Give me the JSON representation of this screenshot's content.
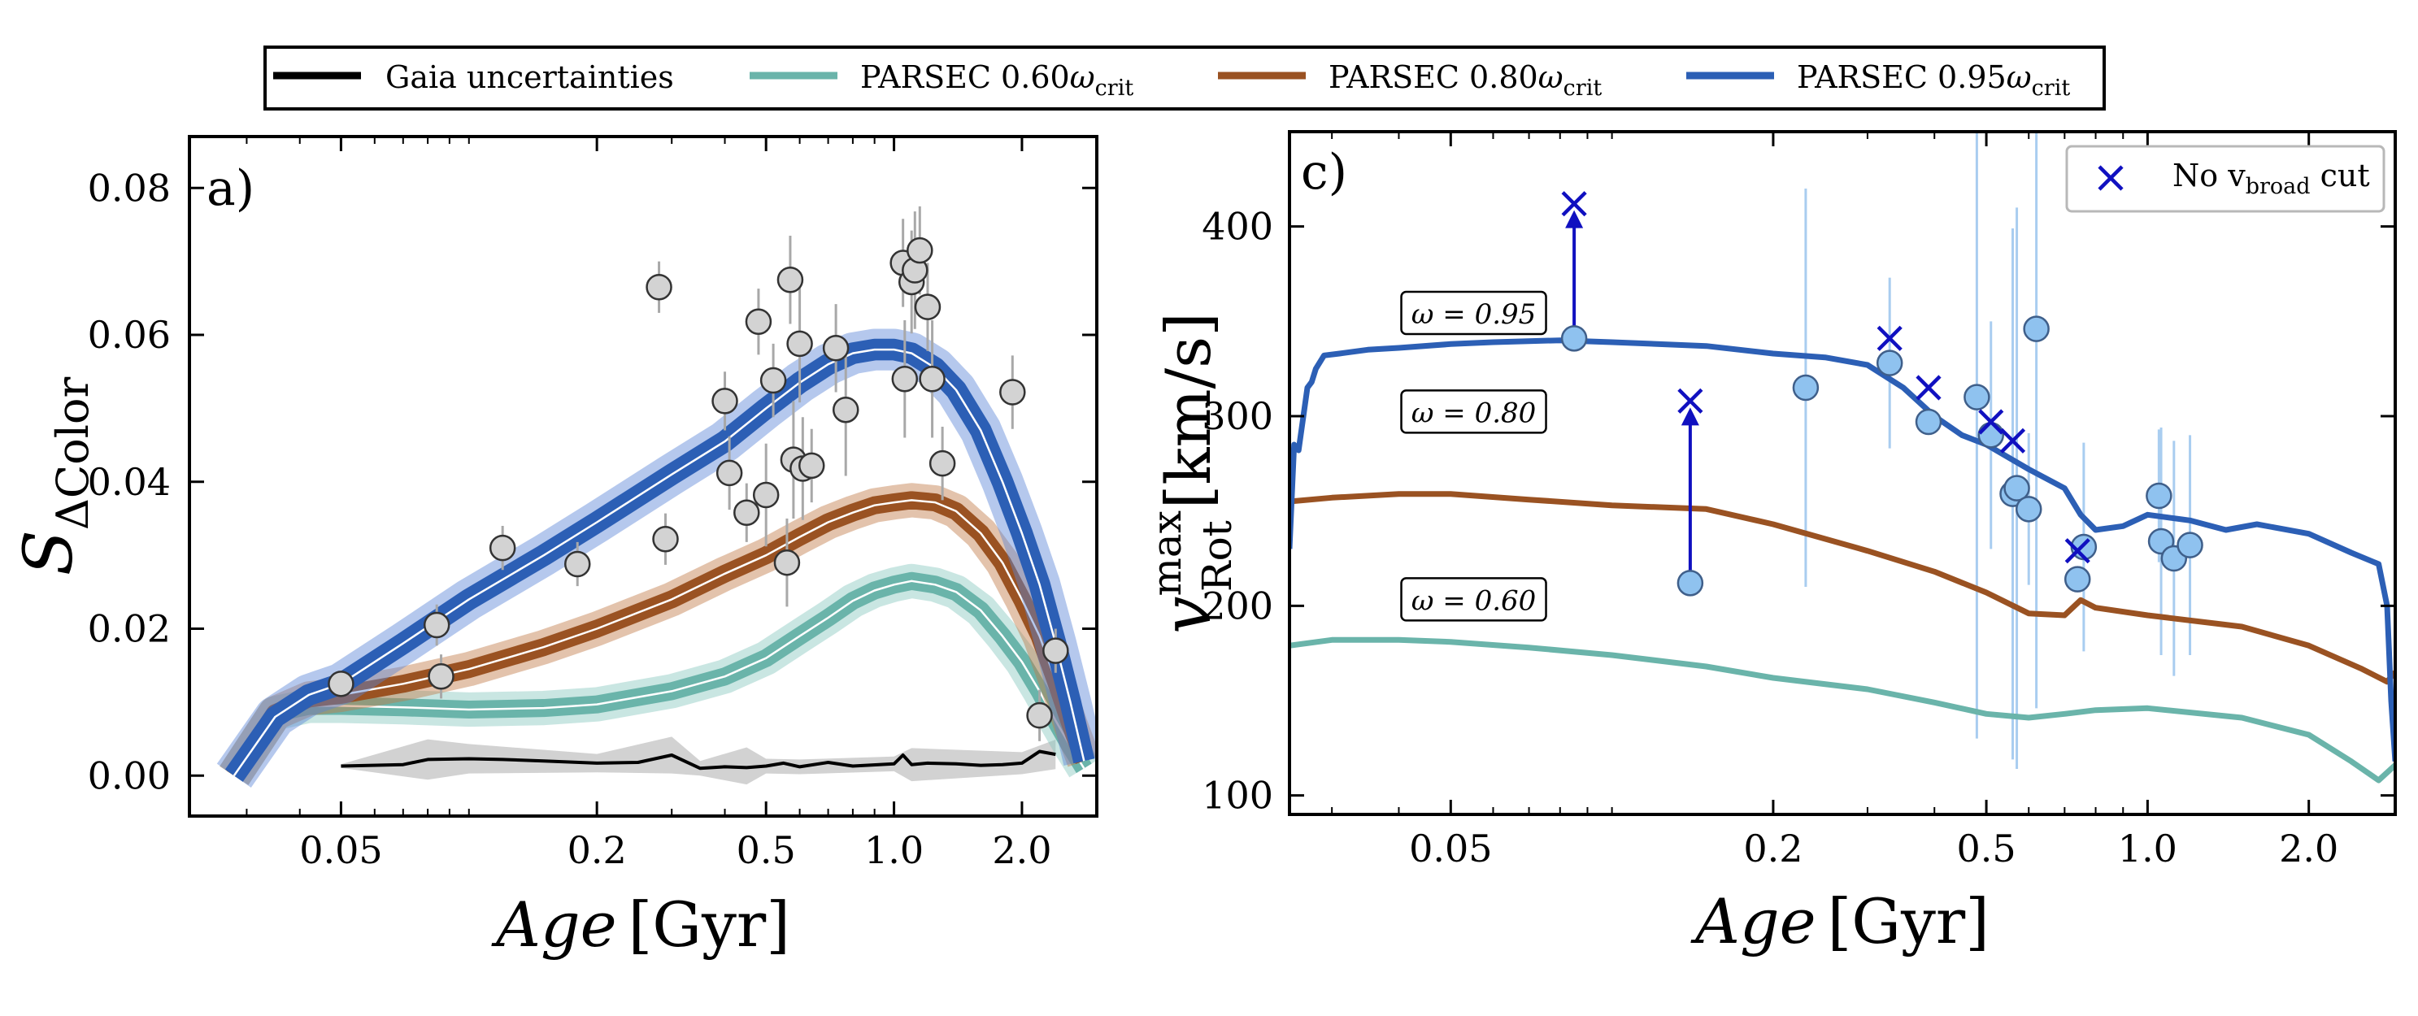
{
  "legend": {
    "entries": [
      {
        "label": "Gaia uncertainties",
        "color": "#000000"
      },
      {
        "label": "PARSEC 0.60",
        "sub": "crit",
        "color": "#6ab4aa"
      },
      {
        "label": "PARSEC 0.80",
        "sub": "crit",
        "color": "#9a5222"
      },
      {
        "label": "PARSEC 0.95",
        "sub": "crit",
        "color": "#2c5fb5"
      }
    ],
    "omega_symbol": "ω"
  },
  "chart_data": [
    {
      "id": "a",
      "type": "line",
      "panel_label": "a)",
      "xscale": "log",
      "xlim": [
        0.022,
        3.0
      ],
      "ylim": [
        -0.0055,
        0.087
      ],
      "xticks": [
        {
          "value": 0.05,
          "label": "0.05"
        },
        {
          "value": 0.2,
          "label": "0.2"
        },
        {
          "value": 0.5,
          "label": "0.5"
        },
        {
          "value": 1.0,
          "label": "1.0"
        },
        {
          "value": 2.0,
          "label": "2.0"
        }
      ],
      "yticks": [
        {
          "value": 0.0,
          "label": "0.00"
        },
        {
          "value": 0.02,
          "label": "0.02"
        },
        {
          "value": 0.04,
          "label": "0.04"
        },
        {
          "value": 0.06,
          "label": "0.06"
        },
        {
          "value": 0.08,
          "label": "0.08"
        }
      ],
      "xlabel": {
        "main": "Age",
        "unit": "[Gyr]"
      },
      "ylabel": {
        "main": "S",
        "sub": "ΔColor"
      },
      "series": [
        {
          "name": "PARSEC 0.95",
          "color": "#2c5fb5",
          "band_color": "#5b86d6",
          "band_width": 0.0025,
          "x": [
            0.028,
            0.035,
            0.042,
            0.05,
            0.07,
            0.1,
            0.15,
            0.2,
            0.3,
            0.4,
            0.5,
            0.6,
            0.7,
            0.8,
            0.9,
            1.0,
            1.1,
            1.25,
            1.4,
            1.6,
            1.8,
            2.0,
            2.2,
            2.4,
            2.6,
            2.8
          ],
          "y": [
            0.0,
            0.008,
            0.011,
            0.0125,
            0.018,
            0.024,
            0.03,
            0.0345,
            0.041,
            0.0455,
            0.05,
            0.0535,
            0.056,
            0.0575,
            0.058,
            0.058,
            0.0575,
            0.0555,
            0.0525,
            0.047,
            0.04,
            0.033,
            0.026,
            0.018,
            0.01,
            0.002
          ]
        },
        {
          "name": "PARSEC 0.80",
          "color": "#9a5222",
          "band_color": "#c07a47",
          "band_width": 0.002,
          "x": [
            0.028,
            0.035,
            0.042,
            0.05,
            0.07,
            0.1,
            0.15,
            0.2,
            0.3,
            0.4,
            0.5,
            0.6,
            0.7,
            0.8,
            0.9,
            1.0,
            1.1,
            1.25,
            1.4,
            1.6,
            1.8,
            2.0,
            2.2,
            2.4,
            2.6,
            2.8
          ],
          "y": [
            0.0,
            0.0085,
            0.0105,
            0.011,
            0.0125,
            0.0145,
            0.0175,
            0.02,
            0.024,
            0.0275,
            0.03,
            0.0325,
            0.0345,
            0.0358,
            0.0368,
            0.0372,
            0.0375,
            0.0372,
            0.036,
            0.033,
            0.029,
            0.024,
            0.019,
            0.013,
            0.007,
            0.002
          ]
        },
        {
          "name": "PARSEC 0.60",
          "color": "#6ab4aa",
          "band_color": "#88c8bf",
          "band_width": 0.002,
          "x": [
            0.028,
            0.035,
            0.042,
            0.05,
            0.07,
            0.1,
            0.15,
            0.2,
            0.3,
            0.4,
            0.5,
            0.6,
            0.7,
            0.8,
            0.9,
            1.0,
            1.1,
            1.25,
            1.4,
            1.6,
            1.8,
            2.0,
            2.2,
            2.4,
            2.6,
            2.8
          ],
          "y": [
            0.0,
            0.0085,
            0.0095,
            0.0095,
            0.0093,
            0.009,
            0.0092,
            0.0097,
            0.0115,
            0.0135,
            0.016,
            0.019,
            0.0215,
            0.0238,
            0.0252,
            0.026,
            0.0265,
            0.026,
            0.025,
            0.0225,
            0.019,
            0.0155,
            0.0115,
            0.0075,
            0.004,
            0.001
          ]
        },
        {
          "name": "Gaia uncertainties",
          "color": "#000000",
          "x": [
            0.05,
            0.07,
            0.08,
            0.1,
            0.12,
            0.15,
            0.2,
            0.25,
            0.3,
            0.35,
            0.4,
            0.45,
            0.5,
            0.55,
            0.6,
            0.7,
            0.8,
            1.0,
            1.05,
            1.1,
            1.2,
            1.4,
            1.6,
            1.8,
            2.0,
            2.2,
            2.4
          ],
          "y": [
            0.0013,
            0.0015,
            0.0022,
            0.0023,
            0.0022,
            0.002,
            0.0017,
            0.0018,
            0.0028,
            0.001,
            0.0012,
            0.0011,
            0.0013,
            0.0017,
            0.0012,
            0.0018,
            0.0013,
            0.0016,
            0.0028,
            0.0015,
            0.0017,
            0.0016,
            0.0014,
            0.0015,
            0.0017,
            0.0033,
            0.0029
          ],
          "band_x": [
            0.05,
            0.08,
            0.1,
            0.2,
            0.3,
            0.35,
            0.45,
            0.5,
            0.6,
            1.0,
            1.1,
            2.0,
            2.4
          ],
          "band_y": [
            0.0005,
            0.0055,
            0.004,
            0.0025,
            0.005,
            0.002,
            0.0055,
            0.002,
            0.002,
            0.002,
            0.0045,
            0.003,
            0.004
          ]
        }
      ],
      "points": {
        "x": [
          0.05,
          0.084,
          0.086,
          0.12,
          0.18,
          0.28,
          0.29,
          0.4,
          0.41,
          0.45,
          0.48,
          0.5,
          0.52,
          0.56,
          0.57,
          0.58,
          0.6,
          0.61,
          0.64,
          0.73,
          0.77,
          1.05,
          1.06,
          1.1,
          1.12,
          1.15,
          1.2,
          1.23,
          1.3,
          1.9,
          2.2,
          2.4
        ],
        "y": [
          0.0125,
          0.0205,
          0.0135,
          0.031,
          0.0288,
          0.0665,
          0.0322,
          0.051,
          0.0412,
          0.0358,
          0.0618,
          0.0382,
          0.0538,
          0.029,
          0.0675,
          0.043,
          0.0588,
          0.0418,
          0.0422,
          0.0582,
          0.0498,
          0.0698,
          0.054,
          0.0672,
          0.0688,
          0.0715,
          0.0638,
          0.054,
          0.0425,
          0.0522,
          0.0082,
          0.017
        ],
        "yerr": [
          0.0012,
          0.0028,
          0.003,
          0.003,
          0.003,
          0.0035,
          0.0035,
          0.004,
          0.005,
          0.004,
          0.0045,
          0.007,
          0.005,
          0.006,
          0.006,
          0.008,
          0.008,
          0.007,
          0.005,
          0.006,
          0.009,
          0.006,
          0.008,
          0.007,
          0.008,
          0.006,
          0.006,
          0.008,
          0.005,
          0.005,
          0.0035,
          0.003
        ]
      }
    },
    {
      "id": "c",
      "type": "line",
      "panel_label": "c)",
      "xscale": "log",
      "xlim": [
        0.025,
        2.9
      ],
      "ylim": [
        90,
        450
      ],
      "xticks": [
        {
          "value": 0.05,
          "label": "0.05"
        },
        {
          "value": 0.2,
          "label": "0.2"
        },
        {
          "value": 0.5,
          "label": "0.5"
        },
        {
          "value": 1.0,
          "label": "1.0"
        },
        {
          "value": 2.0,
          "label": "2.0"
        }
      ],
      "yticks": [
        {
          "value": 100,
          "label": "100"
        },
        {
          "value": 200,
          "label": "200"
        },
        {
          "value": 300,
          "label": "300"
        },
        {
          "value": 400,
          "label": "400"
        }
      ],
      "xlabel": {
        "main": "Age",
        "unit": "[Gyr]"
      },
      "ylabel": {
        "main": "v",
        "sup": "max",
        "sub": "Rot",
        "unit": "[km/s]"
      },
      "legend": {
        "label_main": "No v",
        "label_sub": "broad",
        "label_tail": " cut",
        "color": "#1010c0",
        "placement": "upper right"
      },
      "series": [
        {
          "name": "ω = 0.95",
          "color": "#2c5fb5",
          "x": [
            0.025,
            0.0255,
            0.026,
            0.027,
            0.0275,
            0.028,
            0.029,
            0.031,
            0.035,
            0.04,
            0.05,
            0.06,
            0.08,
            0.1,
            0.15,
            0.2,
            0.25,
            0.3,
            0.35,
            0.4,
            0.45,
            0.5,
            0.6,
            0.7,
            0.75,
            0.8,
            0.9,
            1.0,
            1.2,
            1.4,
            1.6,
            2.0,
            2.4,
            2.7,
            2.8,
            2.85,
            2.9
          ],
          "y": [
            230,
            285,
            282,
            315,
            318,
            325,
            332,
            333,
            335,
            336,
            338,
            339,
            340,
            339,
            337,
            333,
            331,
            327,
            315,
            300,
            290,
            285,
            272,
            262,
            248,
            240,
            242,
            248,
            245,
            240,
            243,
            238,
            228,
            222,
            200,
            150,
            118
          ]
        },
        {
          "name": "ω = 0.80",
          "color": "#9a5222",
          "x": [
            0.025,
            0.03,
            0.04,
            0.05,
            0.07,
            0.1,
            0.15,
            0.2,
            0.3,
            0.4,
            0.5,
            0.6,
            0.7,
            0.75,
            0.8,
            1.0,
            1.5,
            2.0,
            2.5,
            2.8,
            2.9
          ],
          "y": [
            255,
            257,
            259,
            259,
            256,
            253,
            251,
            243,
            229,
            218,
            207,
            196,
            195,
            203,
            199,
            195,
            189,
            179,
            167,
            160,
            165
          ]
        },
        {
          "name": "ω = 0.60",
          "color": "#6ab4aa",
          "x": [
            0.025,
            0.03,
            0.04,
            0.05,
            0.07,
            0.1,
            0.15,
            0.2,
            0.3,
            0.4,
            0.5,
            0.6,
            0.7,
            0.8,
            1.0,
            1.5,
            2.0,
            2.4,
            2.7,
            2.9
          ],
          "y": [
            179,
            182,
            182,
            181,
            178,
            174,
            168,
            162,
            156,
            149,
            143,
            141,
            143,
            145,
            146,
            141,
            132,
            118,
            108,
            116
          ]
        }
      ],
      "curve_labels": [
        {
          "text": "ω = 0.95",
          "value": 0.95,
          "x": 0.041,
          "y": 354
        },
        {
          "text": "ω = 0.80",
          "value": 0.8,
          "x": 0.041,
          "y": 302
        },
        {
          "text": "ω = 0.60",
          "value": 0.6,
          "x": 0.041,
          "y": 203
        }
      ],
      "points": {
        "x": [
          0.085,
          0.14,
          0.23,
          0.33,
          0.39,
          0.48,
          0.51,
          0.56,
          0.57,
          0.6,
          0.62,
          0.74,
          0.76,
          1.05,
          1.06,
          1.12,
          1.2
        ],
        "y": [
          341,
          212,
          315,
          328,
          297,
          310,
          290,
          259,
          262,
          251,
          346,
          214,
          231,
          258,
          234,
          225,
          232
        ],
        "yerr": [
          null,
          null,
          105,
          45,
          null,
          180,
          60,
          140,
          148,
          40,
          200,
          0,
          55,
          35,
          60,
          62,
          58
        ]
      },
      "crosses": {
        "x": [
          0.085,
          0.14,
          0.33,
          0.39,
          0.51,
          0.56,
          0.74
        ],
        "y": [
          412,
          308,
          341,
          315,
          297,
          287,
          229
        ]
      },
      "arrows": [
        {
          "x": 0.085,
          "from": 341,
          "to": 412
        },
        {
          "x": 0.14,
          "from": 212,
          "to": 308
        }
      ]
    }
  ]
}
